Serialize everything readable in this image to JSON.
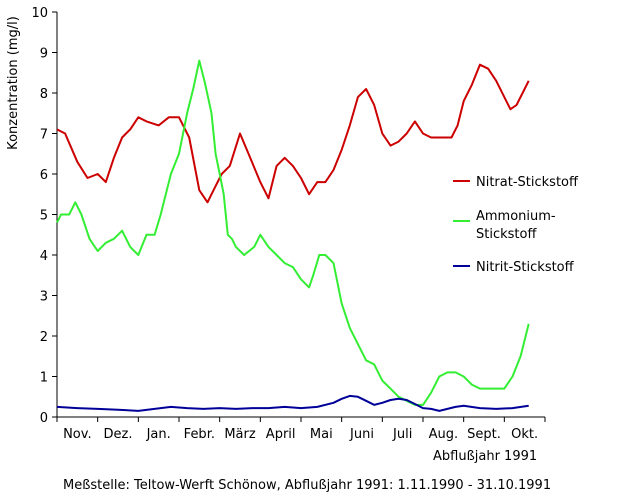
{
  "chart_data": {
    "type": "line",
    "ylabel": "Konzentration (mg/l)",
    "xlabel": "Abflußjahr 1991",
    "footer": "Meßstelle: Teltow-Werft Schönow, Abflußjahr 1991: 1.11.1990 - 31.10.1991",
    "ylim": [
      0,
      10
    ],
    "yticks": [
      0,
      1,
      2,
      3,
      4,
      5,
      6,
      7,
      8,
      9,
      10
    ],
    "xlim": [
      0,
      12
    ],
    "months": [
      "Nov.",
      "Dez.",
      "Jan.",
      "Febr.",
      "März",
      "April",
      "Mai",
      "Juni",
      "Juli",
      "Aug.",
      "Sept.",
      "Okt."
    ],
    "grid": false,
    "legend": "right",
    "series": [
      {
        "name": "Nitrat-Stickstoff",
        "color": "#cc0000",
        "x": [
          0.0,
          0.2,
          0.5,
          0.75,
          1.0,
          1.2,
          1.4,
          1.6,
          1.8,
          2.0,
          2.2,
          2.5,
          2.75,
          3.0,
          3.25,
          3.5,
          3.7,
          3.9,
          4.05,
          4.25,
          4.5,
          4.75,
          5.0,
          5.2,
          5.4,
          5.6,
          5.8,
          6.0,
          6.2,
          6.4,
          6.6,
          6.8,
          7.0,
          7.2,
          7.4,
          7.6,
          7.8,
          8.0,
          8.2,
          8.4,
          8.6,
          8.8,
          9.0,
          9.2,
          9.5,
          9.7,
          9.85,
          10.0,
          10.2,
          10.4,
          10.6,
          10.8,
          11.0,
          11.15,
          11.3,
          11.45,
          11.6
        ],
        "values": [
          7.1,
          7.0,
          6.3,
          5.9,
          6.0,
          5.8,
          6.4,
          6.9,
          7.1,
          7.4,
          7.3,
          7.2,
          7.4,
          7.4,
          6.9,
          5.6,
          5.3,
          5.7,
          6.0,
          6.2,
          7.0,
          6.4,
          5.8,
          5.4,
          6.2,
          6.4,
          6.2,
          5.9,
          5.5,
          5.8,
          5.8,
          6.1,
          6.6,
          7.2,
          7.9,
          8.1,
          7.7,
          7.0,
          6.7,
          6.8,
          7.0,
          7.3,
          7.0,
          6.9,
          6.9,
          6.9,
          7.2,
          7.8,
          8.2,
          8.7,
          8.6,
          8.3,
          7.9,
          7.6,
          7.7,
          8.0,
          8.3
        ]
      },
      {
        "name": "Ammonium-Stickstoff",
        "name_lines": [
          "Ammonium-",
          "Stickstoff"
        ],
        "color": "#33ee33",
        "x": [
          0.0,
          0.1,
          0.3,
          0.45,
          0.6,
          0.8,
          1.0,
          1.2,
          1.4,
          1.6,
          1.8,
          2.0,
          2.2,
          2.4,
          2.55,
          2.8,
          3.0,
          3.2,
          3.35,
          3.5,
          3.65,
          3.8,
          3.9,
          4.0,
          4.1,
          4.2,
          4.3,
          4.4,
          4.6,
          4.85,
          5.0,
          5.2,
          5.4,
          5.6,
          5.8,
          6.0,
          6.2,
          6.3,
          6.45,
          6.6,
          6.8,
          7.0,
          7.2,
          7.4,
          7.6,
          7.8,
          8.0,
          8.2,
          8.4,
          8.6,
          8.8,
          9.0,
          9.2,
          9.4,
          9.6,
          9.8,
          10.0,
          10.2,
          10.4,
          10.6,
          10.8,
          11.0,
          11.2,
          11.4,
          11.6
        ],
        "values": [
          4.8,
          5.0,
          5.0,
          5.3,
          5.0,
          4.4,
          4.1,
          4.3,
          4.4,
          4.6,
          4.2,
          4.0,
          4.5,
          4.5,
          5.0,
          6.0,
          6.5,
          7.5,
          8.1,
          8.8,
          8.2,
          7.5,
          6.5,
          6.0,
          5.5,
          4.5,
          4.4,
          4.2,
          4.0,
          4.2,
          4.5,
          4.2,
          4.0,
          3.8,
          3.7,
          3.4,
          3.2,
          3.5,
          4.0,
          4.0,
          3.8,
          2.8,
          2.2,
          1.8,
          1.4,
          1.3,
          0.9,
          0.7,
          0.5,
          0.4,
          0.3,
          0.3,
          0.6,
          1.0,
          1.1,
          1.1,
          1.0,
          0.8,
          0.7,
          0.7,
          0.7,
          0.7,
          1.0,
          1.5,
          2.3
        ]
      },
      {
        "name": "Nitrit-Stickstoff",
        "color": "#000099",
        "x": [
          0.0,
          0.5,
          1.0,
          1.5,
          2.0,
          2.4,
          2.8,
          3.2,
          3.6,
          4.0,
          4.4,
          4.8,
          5.2,
          5.6,
          6.0,
          6.4,
          6.8,
          7.0,
          7.2,
          7.4,
          7.6,
          7.8,
          8.0,
          8.2,
          8.4,
          8.6,
          8.8,
          9.0,
          9.2,
          9.4,
          9.6,
          9.8,
          10.0,
          10.4,
          10.8,
          11.2,
          11.6
        ],
        "values": [
          0.25,
          0.22,
          0.2,
          0.18,
          0.15,
          0.2,
          0.25,
          0.22,
          0.2,
          0.22,
          0.2,
          0.22,
          0.22,
          0.25,
          0.22,
          0.25,
          0.35,
          0.45,
          0.52,
          0.5,
          0.4,
          0.3,
          0.35,
          0.42,
          0.45,
          0.42,
          0.32,
          0.22,
          0.2,
          0.15,
          0.2,
          0.25,
          0.28,
          0.22,
          0.2,
          0.22,
          0.28
        ]
      }
    ]
  }
}
